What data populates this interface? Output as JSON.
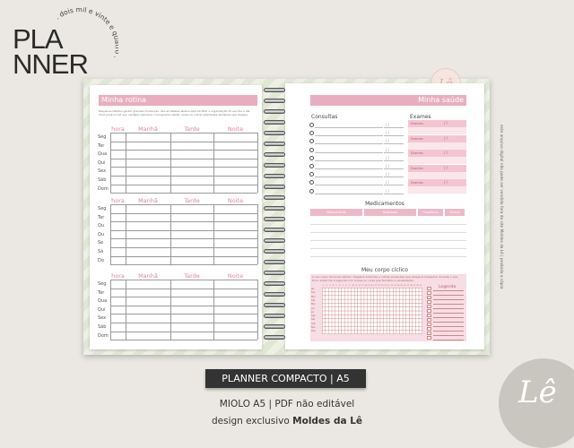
{
  "logo": {
    "title_line1": "PLA",
    "title_line2": "NNER",
    "tagline": ". dois mil e vinte e quatro ."
  },
  "left_page": {
    "title": "Minha rotina",
    "description": "Pequenos hábitos geram grandes mudanças. Use as tabelas abaixo para facilitar a organização do seu dia a dia. Você pode incluir seu cardápio semanal, cronograma capilar, aulas ou outras atividades semanais que desejar.",
    "columns": [
      "hora",
      "Manhã",
      "Tarde",
      "Noite"
    ],
    "blocks": [
      [
        "Seg",
        "Ter",
        "Qua",
        "Qui",
        "Sex",
        "Sáb",
        "Dom"
      ],
      [
        "Seg",
        "Ter",
        "Qu",
        "Qu",
        "Se",
        "Sá",
        "Do"
      ],
      [
        "Seg",
        "Ter",
        "Qua",
        "Qui",
        "Sex",
        "Sáb",
        "Dom"
      ]
    ]
  },
  "right_page": {
    "title": "Minha saúde",
    "consultas_label": "Consultas",
    "consultas_rows": 9,
    "date_placeholder": "/   /",
    "exames_label": "Exames",
    "exames_item": "Exames",
    "exames_rows": 5,
    "medicamentos_title": "Medicamentos",
    "medicamentos_columns": [
      "Medicamento",
      "Finalidade",
      "Frequência",
      "Horário"
    ],
    "ciclico_title": "Meu corpo cíclico",
    "ciclico_text": "O seu corpo dá sinais diários ! Registre sintomas e outras sensações que deseja acompanhar durante o ano. Dica: preencha a legenda com ícones ou cores que facilitem a visualização.",
    "legend_label": "Legenda",
    "months": [
      "Jan",
      "Fev",
      "Mar",
      "Abr",
      "Mai",
      "Jun",
      "Jul",
      "Ago",
      "Set",
      "Out",
      "Nov",
      "Dez"
    ],
    "days": 31
  },
  "side_note": "este arquivo digital não pode ser vendido fora do site Moldes da Lê | proibida a cópia",
  "stamp": "Lê",
  "product": {
    "tag": "PLANNER COMPACTO | A5",
    "line1": "MIOLO A5 | PDF não editável",
    "line2_prefix": "design exclusivo ",
    "line2_brand": "Moldes da Lê"
  },
  "brand_mark": "Lê",
  "colors": {
    "accent_pink": "#e8aebf",
    "dark_tag": "#333333",
    "background": "#ebe8e3"
  }
}
